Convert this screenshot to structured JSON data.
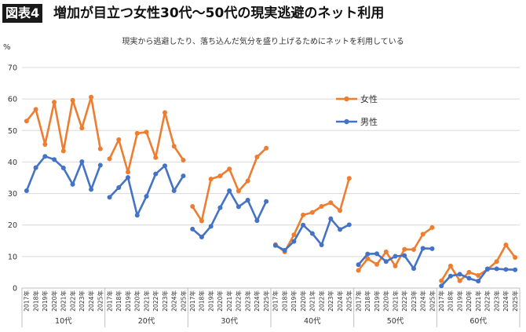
{
  "header": {
    "badge": "図表4",
    "title": "増加が目立つ女性30代〜50代の現実逃避のネット利用"
  },
  "chart_data": {
    "type": "line",
    "title": "",
    "subtitle": "現実から逃避したり、落ち込んだ気分を盛り上げるためにネットを利用している",
    "ylabel": "%",
    "ylim": [
      0,
      70
    ],
    "yticks": [
      0,
      10,
      20,
      30,
      40,
      50,
      60,
      70
    ],
    "grid": true,
    "legend_position": "upper-center-right",
    "years": [
      "2017年",
      "2018年",
      "2019年",
      "2020年",
      "2021年",
      "2022年",
      "2023年",
      "2024年",
      "2025年"
    ],
    "groups": [
      "10代",
      "20代",
      "30代",
      "40代",
      "50代",
      "60代"
    ],
    "series": [
      {
        "name": "女性",
        "color": "#ED7D31",
        "values": [
          [
            53.0,
            56.7,
            45.6,
            59.0,
            43.5,
            59.6,
            50.8,
            60.6,
            44.2
          ],
          [
            41.0,
            47.1,
            36.8,
            49.1,
            49.5,
            41.4,
            55.7,
            45.0,
            40.6
          ],
          [
            25.9,
            21.3,
            34.6,
            35.6,
            37.8,
            30.8,
            34.0,
            41.6,
            44.4
          ],
          [
            13.8,
            11.5,
            16.9,
            23.2,
            24.0,
            25.9,
            27.1,
            24.6,
            34.8
          ],
          [
            5.6,
            9.3,
            7.5,
            11.5,
            7.0,
            12.3,
            12.2,
            17.1,
            19.2
          ],
          [
            2.3,
            7.0,
            2.3,
            5.0,
            4.0,
            5.9,
            8.4,
            13.7,
            9.7
          ]
        ]
      },
      {
        "name": "男性",
        "color": "#4472C4",
        "values": [
          [
            30.9,
            38.2,
            41.8,
            40.8,
            38.1,
            32.9,
            40.1,
            31.3,
            39.0
          ],
          [
            28.8,
            31.9,
            35.1,
            23.1,
            29.1,
            36.2,
            38.8,
            30.9,
            35.6
          ],
          [
            18.7,
            16.2,
            19.6,
            25.5,
            30.9,
            25.8,
            27.9,
            21.4,
            27.5
          ],
          [
            13.5,
            12.0,
            14.8,
            20.0,
            17.3,
            13.7,
            22.0,
            18.6,
            20.1
          ],
          [
            7.4,
            10.8,
            10.9,
            8.4,
            10.1,
            10.3,
            6.2,
            12.6,
            12.5
          ],
          [
            0.7,
            3.8,
            4.4,
            3.1,
            2.2,
            6.1,
            6.1,
            5.9,
            5.8
          ]
        ]
      }
    ]
  }
}
